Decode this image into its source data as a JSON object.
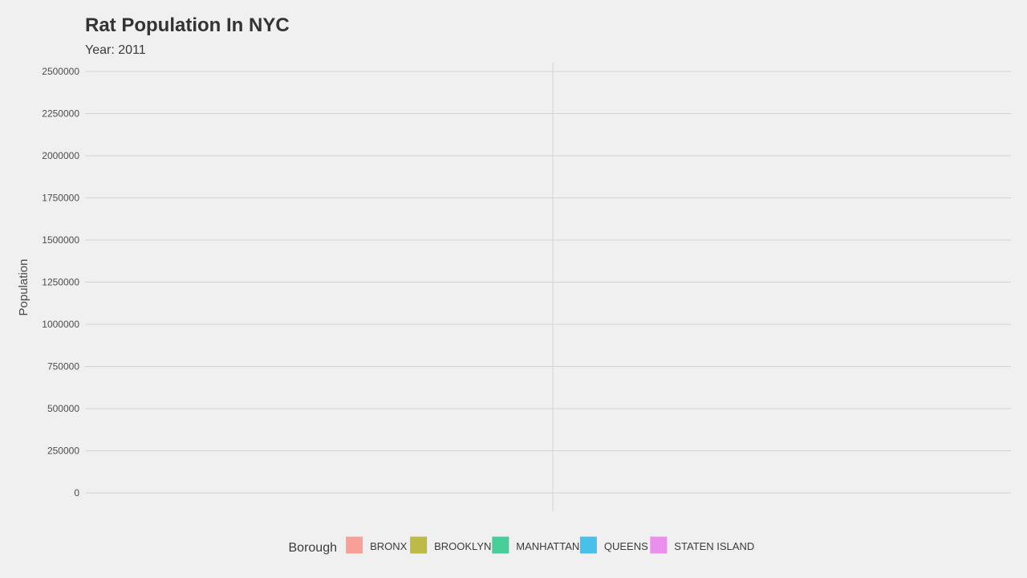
{
  "chart_data": {
    "type": "bar",
    "title": "Rat Population In NYC",
    "subtitle": "Year: 2011",
    "xlabel": "",
    "ylabel": "Population",
    "ylim": [
      0,
      2500000
    ],
    "y_ticks": [
      0,
      250000,
      500000,
      750000,
      1000000,
      1250000,
      1500000,
      1750000,
      2000000,
      2250000,
      2500000
    ],
    "y_tick_labels": [
      "0",
      "250000",
      "500000",
      "750000",
      "1000000",
      "1250000",
      "1500000",
      "1750000",
      "2000000",
      "2250000",
      "2500000"
    ],
    "grid": true,
    "legend": {
      "title": "Borough",
      "placement": "bottom",
      "entries": [
        {
          "name": "BRONX",
          "color": "#f8a098"
        },
        {
          "name": "BROOKLYN",
          "color": "#bdbb45"
        },
        {
          "name": "MANHATTAN",
          "color": "#47cd9a"
        },
        {
          "name": "QUEENS",
          "color": "#47c0ec"
        },
        {
          "name": "STATEN ISLAND",
          "color": "#ea8fec"
        }
      ]
    },
    "categories": [],
    "series": []
  }
}
